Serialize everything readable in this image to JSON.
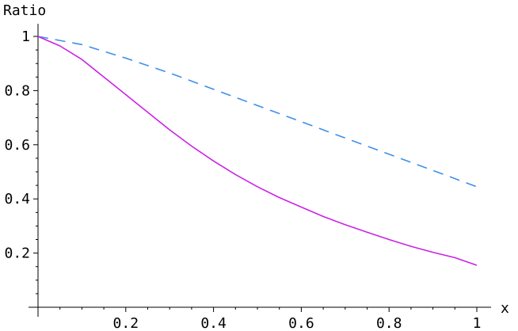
{
  "chart_data": {
    "type": "line",
    "xlabel": "x",
    "ylabel": "Ratio",
    "xlim": [
      0,
      1
    ],
    "ylim": [
      0,
      1
    ],
    "x_ticks": [
      0.2,
      0.4,
      0.6,
      0.8,
      1
    ],
    "x_tick_labels": [
      "0.2",
      "0.4",
      "0.6",
      "0.8",
      "1"
    ],
    "y_ticks": [
      0.2,
      0.4,
      0.6,
      0.8,
      1
    ],
    "y_tick_labels": [
      "0.2",
      "0.4",
      "0.6",
      "0.8",
      "1"
    ],
    "grid": false,
    "series": [
      {
        "style": "dashed",
        "color": "#3d8fe8",
        "x": [
          0,
          0.1,
          0.2,
          0.3,
          0.4,
          0.5,
          0.6,
          0.7,
          0.8,
          0.9,
          1.0
        ],
        "y": [
          1.0,
          0.97,
          0.92,
          0.865,
          0.805,
          0.745,
          0.685,
          0.625,
          0.565,
          0.505,
          0.445
        ]
      },
      {
        "style": "solid",
        "color": "#cc22e6",
        "x": [
          0,
          0.05,
          0.1,
          0.15,
          0.2,
          0.25,
          0.3,
          0.35,
          0.4,
          0.45,
          0.5,
          0.55,
          0.6,
          0.65,
          0.7,
          0.75,
          0.8,
          0.85,
          0.9,
          0.95,
          1.0
        ],
        "y": [
          1.0,
          0.965,
          0.915,
          0.85,
          0.785,
          0.72,
          0.655,
          0.595,
          0.54,
          0.49,
          0.445,
          0.405,
          0.37,
          0.335,
          0.305,
          0.277,
          0.25,
          0.225,
          0.203,
          0.183,
          0.155
        ]
      }
    ]
  }
}
